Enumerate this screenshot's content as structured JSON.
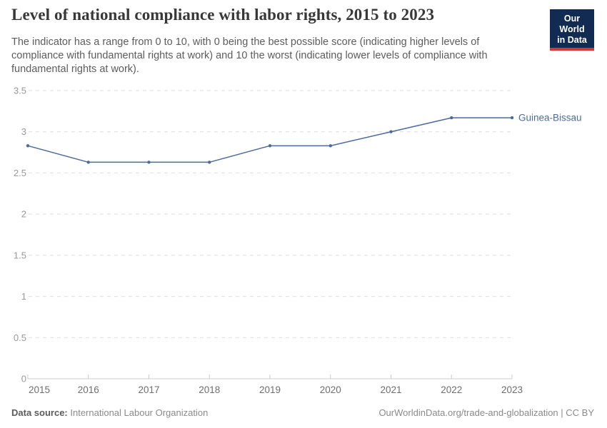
{
  "header": {
    "title": "Level of national compliance with labor rights, 2015 to 2023",
    "subtitle": "The indicator has a range from 0 to 10, with 0 being the best possible score (indicating higher levels of compliance with fundamental rights at work) and 10 the worst (indicating lower levels of compliance with fundamental rights at work).",
    "logo": {
      "line1": "Our World",
      "line2": "in Data"
    }
  },
  "chart_data": {
    "type": "line",
    "title": "Level of national compliance with labor rights, 2015 to 2023",
    "x": [
      2015,
      2016,
      2017,
      2018,
      2019,
      2020,
      2021,
      2022,
      2023
    ],
    "series": [
      {
        "name": "Guinea-Bissau",
        "values": [
          2.83,
          2.63,
          2.63,
          2.63,
          2.83,
          2.83,
          3.0,
          3.17,
          3.17
        ],
        "color": "#4C6A9C"
      }
    ],
    "xlabel": "",
    "ylabel": "",
    "ylim": [
      0,
      3.5
    ],
    "yticks": [
      0,
      0.5,
      1,
      1.5,
      2,
      2.5,
      3,
      3.5
    ],
    "grid": "horizontal-dashed",
    "legend_position": "end-of-line-label"
  },
  "colors": {
    "line": "#4C6A9C",
    "grid": "#dedede",
    "axis": "#cccccc",
    "y_tick_text": "#999999",
    "x_tick_text": "#6e6e6e",
    "logo_bg": "#122b52",
    "logo_red": "#d13b33"
  },
  "footer": {
    "datasource_label": "Data source:",
    "datasource_value": " International Labour Organization",
    "credit": "OurWorldinData.org/trade-and-globalization | CC BY"
  }
}
